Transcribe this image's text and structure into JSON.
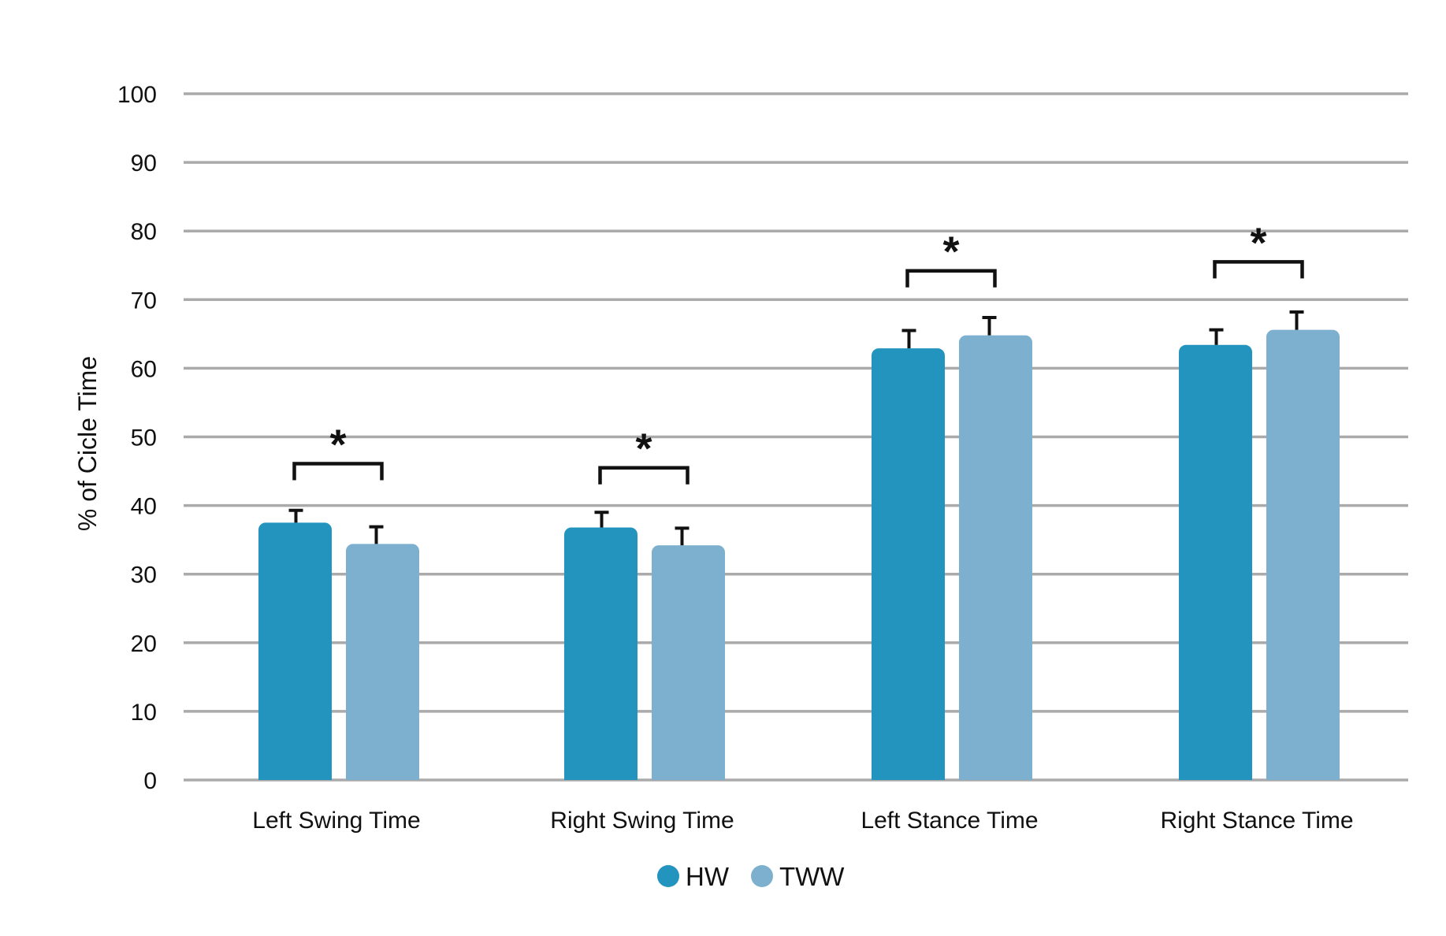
{
  "chart_data": {
    "type": "bar",
    "title": "",
    "xlabel": "",
    "ylabel": "% of Cicle Time",
    "ylim": [
      0,
      100
    ],
    "yticks": [
      0,
      10,
      20,
      30,
      40,
      50,
      60,
      70,
      80,
      90,
      100
    ],
    "grid": true,
    "legend_position": "bottom-center",
    "categories": [
      "Left Swing Time",
      "Right Swing Time",
      "Left Stance Time",
      "Right Stance Time"
    ],
    "series": [
      {
        "name": "HW",
        "color": "#2394be",
        "values": [
          37.5,
          36.8,
          62.9,
          63.4
        ],
        "errors": [
          1.8,
          2.2,
          2.6,
          2.2
        ]
      },
      {
        "name": "TWW",
        "color": "#7db0cf",
        "values": [
          34.4,
          34.2,
          64.8,
          65.6
        ],
        "errors": [
          2.5,
          2.5,
          2.6,
          2.6
        ]
      }
    ],
    "significance": [
      {
        "category": "Left Swing Time",
        "bracket_y": 46.1,
        "label": "*"
      },
      {
        "category": "Right Swing Time",
        "bracket_y": 45.5,
        "label": "*"
      },
      {
        "category": "Left Stance Time",
        "bracket_y": 74.2,
        "label": "*"
      },
      {
        "category": "Right Stance Time",
        "bracket_y": 75.5,
        "label": "*"
      }
    ]
  }
}
